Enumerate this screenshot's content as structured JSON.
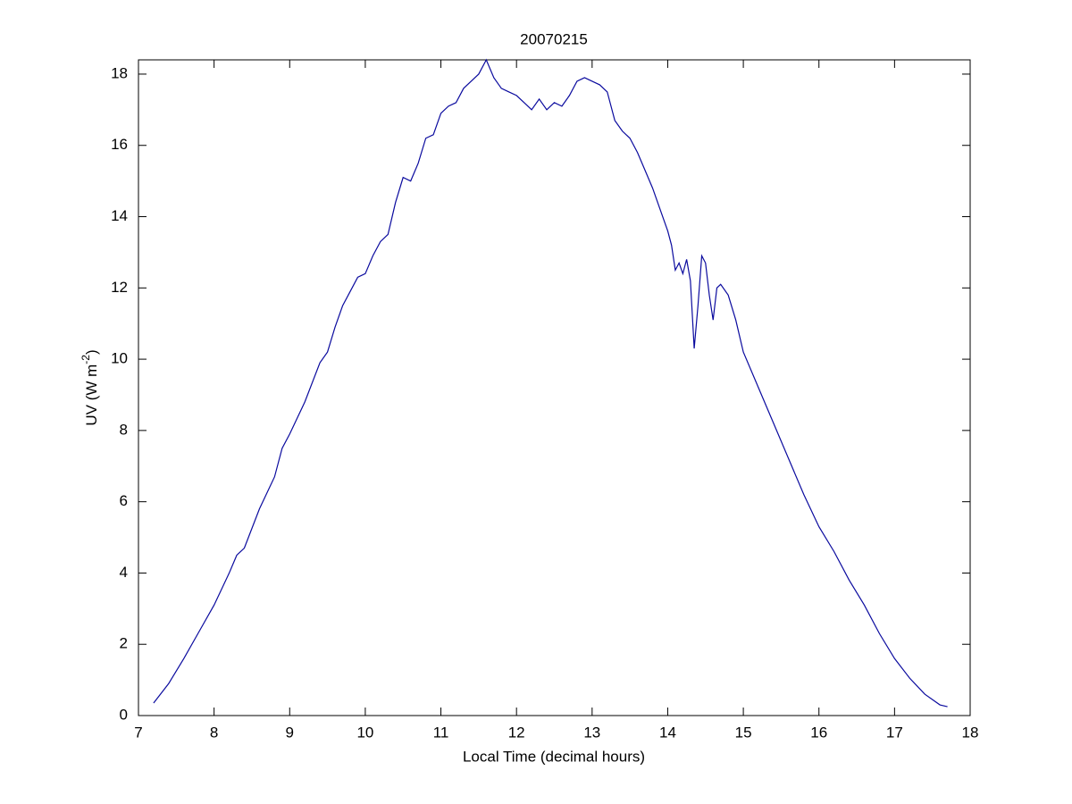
{
  "chart_data": {
    "type": "line",
    "title": "20070215",
    "xlabel": "Local Time (decimal hours)",
    "ylabel": {
      "text": "UV (W m",
      "superscript": "-2",
      "after": ")"
    },
    "color": "#0a0a9e",
    "x": [
      7.2,
      7.4,
      7.6,
      7.8,
      8.0,
      8.2,
      8.3,
      8.4,
      8.6,
      8.8,
      8.9,
      9.0,
      9.2,
      9.4,
      9.5,
      9.6,
      9.7,
      9.8,
      9.9,
      10.0,
      10.1,
      10.2,
      10.3,
      10.4,
      10.5,
      10.6,
      10.7,
      10.8,
      10.9,
      11.0,
      11.1,
      11.2,
      11.3,
      11.4,
      11.5,
      11.6,
      11.7,
      11.8,
      11.9,
      12.0,
      12.1,
      12.2,
      12.3,
      12.4,
      12.5,
      12.6,
      12.7,
      12.8,
      12.9,
      13.0,
      13.1,
      13.2,
      13.3,
      13.4,
      13.5,
      13.6,
      13.7,
      13.8,
      13.9,
      14.0,
      14.05,
      14.1,
      14.15,
      14.2,
      14.25,
      14.3,
      14.35,
      14.4,
      14.45,
      14.5,
      14.55,
      14.6,
      14.65,
      14.7,
      14.8,
      14.9,
      15.0,
      15.2,
      15.4,
      15.6,
      15.8,
      16.0,
      16.2,
      16.4,
      16.6,
      16.8,
      17.0,
      17.2,
      17.4,
      17.6,
      17.7
    ],
    "values": [
      0.35,
      0.9,
      1.6,
      2.35,
      3.1,
      4.0,
      4.5,
      4.7,
      5.8,
      6.7,
      7.5,
      7.9,
      8.8,
      9.9,
      10.2,
      10.9,
      11.5,
      11.9,
      12.3,
      12.4,
      12.9,
      13.3,
      13.5,
      14.4,
      15.1,
      15.0,
      15.5,
      16.2,
      16.3,
      16.9,
      17.1,
      17.2,
      17.6,
      17.8,
      18.0,
      18.4,
      17.9,
      17.6,
      17.5,
      17.4,
      17.2,
      17.0,
      17.3,
      17.0,
      17.2,
      17.1,
      17.4,
      17.8,
      17.9,
      17.8,
      17.7,
      17.5,
      16.7,
      16.4,
      16.2,
      15.8,
      15.3,
      14.8,
      14.2,
      13.6,
      13.2,
      12.5,
      12.7,
      12.4,
      12.8,
      12.2,
      10.3,
      11.5,
      12.9,
      12.7,
      11.8,
      11.1,
      12.0,
      12.1,
      11.8,
      11.1,
      10.2,
      9.2,
      8.2,
      7.2,
      6.2,
      5.3,
      4.6,
      3.8,
      3.1,
      2.3,
      1.6,
      1.05,
      0.6,
      0.3,
      0.25
    ],
    "xlim": [
      7,
      18
    ],
    "xticks": [
      7,
      8,
      9,
      10,
      11,
      12,
      13,
      14,
      15,
      16,
      17,
      18
    ],
    "ylim": [
      0,
      18.4
    ],
    "yticks": [
      0,
      2,
      4,
      6,
      8,
      10,
      12,
      14,
      16,
      18
    ]
  }
}
